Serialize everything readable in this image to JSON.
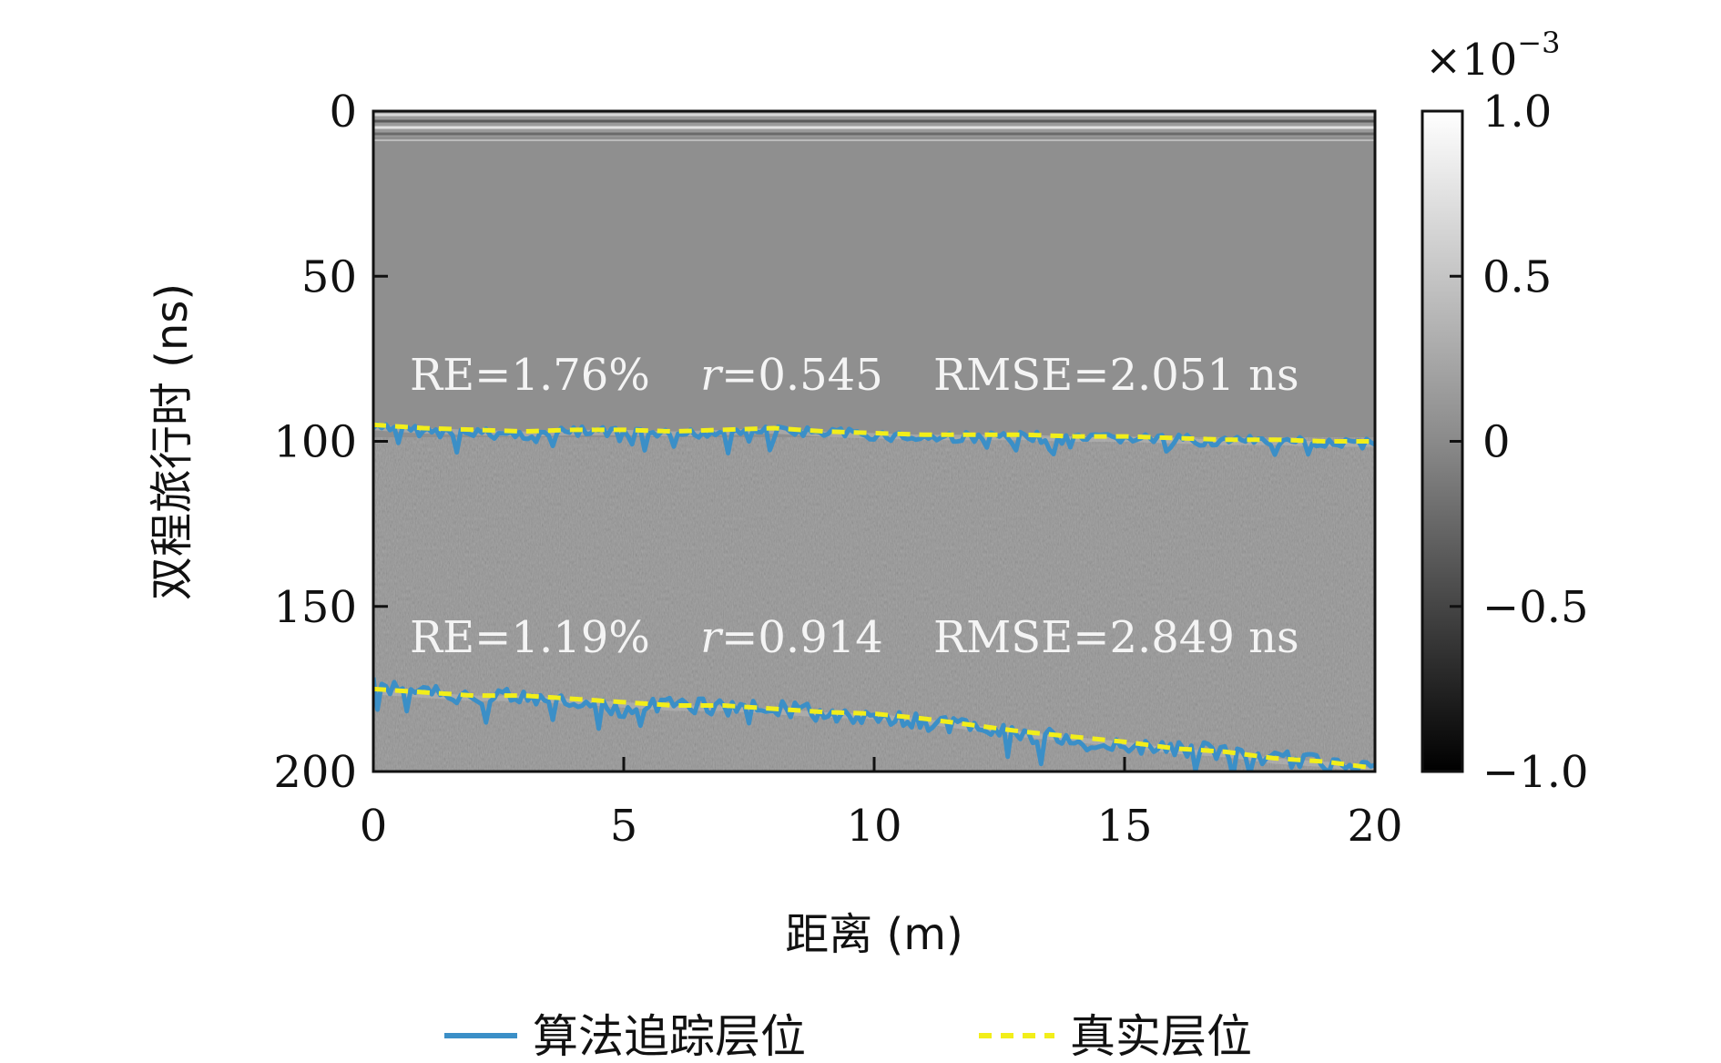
{
  "chart_data": {
    "type": "line",
    "xlabel": "距离 (m)",
    "ylabel": "双程旅行时 (ns)",
    "xlim": [
      0,
      20
    ],
    "ylim": [
      200,
      0
    ],
    "x_ticks": [
      "0",
      "5",
      "10",
      "15",
      "20"
    ],
    "y_ticks": [
      "0",
      "50",
      "100",
      "150",
      "200"
    ],
    "grid": false,
    "legend_placement": "bottom-center",
    "background": "grayscale GPR radargram image",
    "colorbar": {
      "multiplier": "×10",
      "exponent": "−3",
      "ticks": [
        "1.0",
        "0.5",
        "0",
        "−0.5",
        "−1.0"
      ],
      "values": [
        1.0,
        0.5,
        0,
        -0.5,
        -1.0
      ],
      "colormap": "gray"
    },
    "annotations": [
      {
        "re": "RE=1.76%",
        "r_symbol": "r",
        "r_value": "=0.545",
        "rmse": "RMSE=2.051 ns"
      },
      {
        "re": "RE=1.19%",
        "r_symbol": "r",
        "r_value": "=0.914",
        "rmse": "RMSE=2.849 ns"
      }
    ],
    "series": [
      {
        "name": "算法追踪层位",
        "color": "#3b8fc7",
        "style": "solid",
        "layers": [
          {
            "x": [
              0,
              1,
              2,
              3,
              4,
              5,
              6,
              7,
              8,
              9,
              10,
              11,
              12,
              13,
              14,
              15,
              16,
              17,
              18,
              19,
              20
            ],
            "y": [
              96,
              97,
              97.5,
              98,
              97,
              97.5,
              98,
              97,
              96.5,
              97.5,
              98,
              99,
              98.5,
              98.5,
              99.5,
              99,
              99.5,
              100,
              100,
              100,
              101
            ]
          },
          {
            "x": [
              0,
              1,
              2,
              3,
              4,
              5,
              6,
              7,
              8,
              9,
              10,
              11,
              12,
              13,
              14,
              15,
              16,
              17,
              18,
              19,
              20
            ],
            "y": [
              174,
              176,
              177.5,
              177,
              179,
              181,
              180,
              180.5,
              181,
              182.5,
              183,
              185,
              187,
              189,
              190,
              192,
              193,
              194,
              196,
              197,
              198
            ]
          }
        ]
      },
      {
        "name": "真实层位",
        "color": "#f2ee1a",
        "style": "dashed",
        "layers": [
          {
            "x": [
              0,
              1,
              2,
              3,
              4,
              5,
              6,
              7,
              8,
              9,
              10,
              11,
              12,
              13,
              14,
              15,
              16,
              17,
              18,
              19,
              20
            ],
            "y": [
              95,
              96,
              96.5,
              97,
              96.5,
              96.5,
              97,
              96.5,
              96,
              97,
              97.5,
              98,
              98,
              98,
              98.5,
              98.5,
              99,
              99.5,
              99.5,
              100,
              100
            ]
          },
          {
            "x": [
              0,
              1,
              2,
              3,
              4,
              5,
              6,
              7,
              8,
              9,
              10,
              11,
              12,
              13,
              14,
              15,
              16,
              17,
              18,
              19,
              20
            ],
            "y": [
              175,
              176,
              177,
              177,
              178,
              179,
              180,
              180,
              181,
              182,
              182.5,
              184,
              186,
              188,
              189.5,
              191,
              193,
              194,
              196,
              197,
              199
            ]
          }
        ]
      }
    ]
  }
}
